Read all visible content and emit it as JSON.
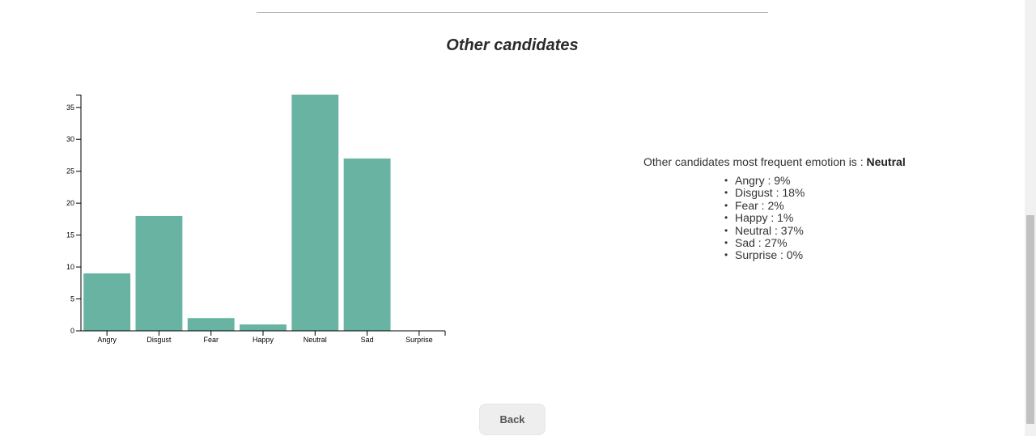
{
  "section_title": "Other candidates",
  "chart_data": {
    "type": "bar",
    "categories": [
      "Angry",
      "Disgust",
      "Fear",
      "Happy",
      "Neutral",
      "Sad",
      "Surprise"
    ],
    "values": [
      9,
      18,
      2,
      1,
      37,
      27,
      0
    ],
    "yticks": [
      0,
      5,
      10,
      15,
      20,
      25,
      30,
      35
    ],
    "ylim": [
      0,
      37
    ],
    "bar_color": "#69b3a2",
    "title": "",
    "xlabel": "",
    "ylabel": ""
  },
  "summary": {
    "prefix": "Other candidates most frequent emotion is : ",
    "emotion": "Neutral",
    "items": [
      "Angry : 9%",
      "Disgust : 18%",
      "Fear : 2%",
      "Happy : 1%",
      "Neutral : 37%",
      "Sad : 27%",
      "Surprise : 0%"
    ]
  },
  "back_label": "Back"
}
